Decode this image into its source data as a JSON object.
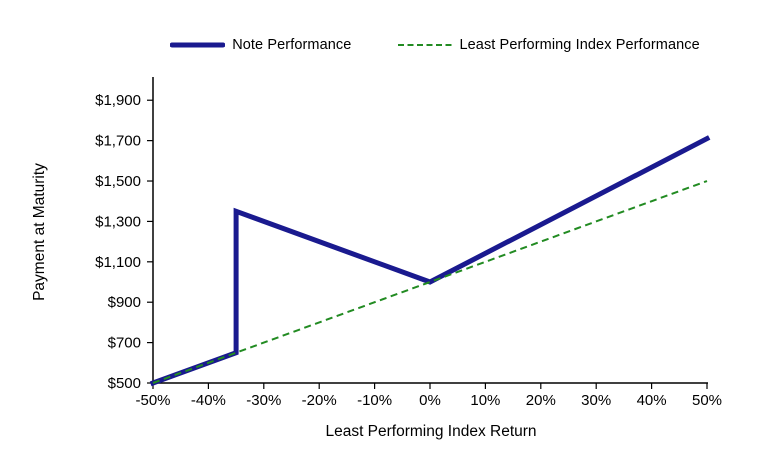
{
  "legend": {
    "items": [
      {
        "label": "Note Performance",
        "color": "#1a1a8f",
        "line_style": "solid"
      },
      {
        "label": "Least Performing Index Performance",
        "color": "#228b22",
        "line_style": "dashed"
      }
    ]
  },
  "chart_data": {
    "type": "line",
    "title": "",
    "xlabel": "Least Performing Index Return",
    "ylabel": "Payment at Maturity",
    "xlim": [
      -50,
      50
    ],
    "ylim": [
      500,
      2015
    ],
    "grid": false,
    "legend_position": "top-center",
    "x_ticks": [
      -50,
      -40,
      -30,
      -20,
      -10,
      0,
      10,
      20,
      30,
      40,
      50
    ],
    "x_tick_labels": [
      "-50%",
      "-40%",
      "-30%",
      "-20%",
      "-10%",
      "0%",
      "10%",
      "20%",
      "30%",
      "40%",
      "50%"
    ],
    "y_ticks": [
      500,
      700,
      900,
      1100,
      1300,
      1500,
      1700,
      1900
    ],
    "y_tick_labels": [
      "$500",
      "$700",
      "$900",
      "$1,100",
      "$1,300",
      "$1,500",
      "$1,700",
      "$1,900"
    ],
    "series": [
      {
        "name": "Note Performance",
        "color": "#1a1a8f",
        "style": "solid",
        "stroke_width": 5,
        "points": [
          [
            -50,
            500
          ],
          [
            -35,
            650
          ],
          [
            -35,
            1350
          ],
          [
            0,
            1000
          ],
          [
            50,
            1710
          ]
        ]
      },
      {
        "name": "Least Performing Index Performance",
        "color": "#228b22",
        "style": "dashed",
        "stroke_width": 2,
        "points": [
          [
            -50,
            500
          ],
          [
            0,
            1000
          ],
          [
            50,
            1500
          ]
        ]
      }
    ]
  }
}
